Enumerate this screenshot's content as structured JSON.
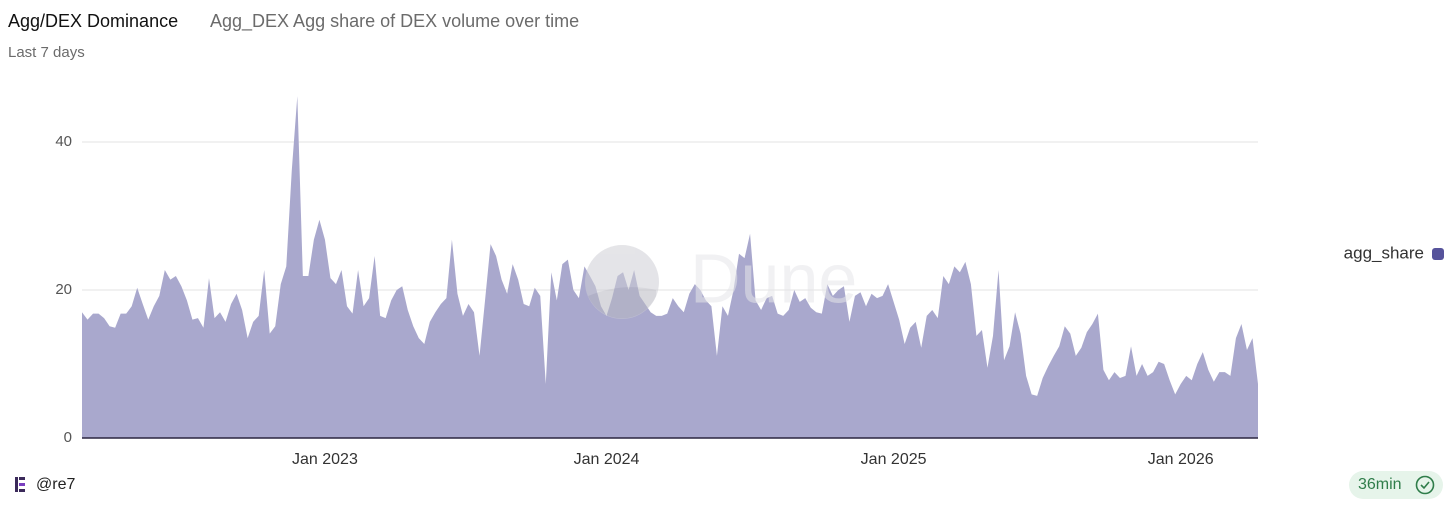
{
  "chart_data": {
    "type": "area",
    "title": "Agg/DEX Dominance",
    "subtitle": "Agg_DEX Agg share of DEX volume over time",
    "period": "Last 7 days",
    "watermark": "Dune",
    "author": "@re7",
    "refresh": "36min",
    "categories": [
      null,
      null,
      null,
      null,
      null,
      null,
      null,
      null,
      null,
      null,
      null,
      null,
      null,
      null,
      null,
      null,
      null,
      null,
      null,
      null,
      null,
      null,
      null,
      null,
      null,
      null,
      null,
      null,
      null,
      null,
      null,
      null,
      null,
      null,
      null,
      null,
      null,
      null,
      null,
      null,
      null,
      null,
      null,
      null,
      "Jan 2023",
      null,
      null,
      null,
      null,
      null,
      null,
      null,
      null,
      null,
      null,
      null,
      null,
      null,
      null,
      null,
      null,
      null,
      null,
      null,
      null,
      null,
      null,
      null,
      null,
      null,
      null,
      null,
      null,
      null,
      null,
      null,
      null,
      null,
      null,
      null,
      null,
      null,
      null,
      null,
      null,
      null,
      null,
      null,
      null,
      null,
      null,
      null,
      null,
      null,
      null,
      "Jan 2024",
      null,
      null,
      null,
      null,
      null,
      null,
      null,
      null,
      null,
      null,
      null,
      null,
      null,
      null,
      null,
      null,
      null,
      null,
      null,
      null,
      null,
      null,
      null,
      null,
      null,
      null,
      null,
      null,
      null,
      null,
      null,
      null,
      null,
      null,
      null,
      null,
      null,
      null,
      null,
      null,
      null,
      null,
      null,
      null,
      null,
      null,
      null,
      null,
      null,
      null,
      null,
      "Jan 2025",
      null,
      null,
      null,
      null,
      null,
      null,
      null,
      null,
      null,
      null,
      null,
      null,
      null,
      null,
      null,
      null,
      null,
      null,
      null,
      null,
      null,
      null,
      null,
      null,
      null,
      null,
      null,
      null,
      null,
      null,
      null,
      null,
      null,
      null,
      null,
      null,
      null,
      null,
      null,
      null,
      null,
      null,
      null,
      null,
      null,
      null,
      null,
      null,
      null,
      null,
      null,
      "Jan 2026",
      null,
      null,
      null,
      null,
      null,
      null,
      null,
      null,
      null,
      null,
      null,
      null,
      null,
      null
    ],
    "series": [
      {
        "name": "agg_share",
        "color": "#a9a8cd",
        "legend_color": "#56539b",
        "values": [
          17,
          16,
          16.8,
          16.8,
          16.2,
          15.1,
          14.9,
          16.8,
          16.8,
          17.8,
          20.3,
          18.1,
          16,
          17.8,
          19.2,
          22.7,
          21.4,
          21.9,
          20.5,
          18.6,
          16,
          16.2,
          14.9,
          21.6,
          16.2,
          17,
          15.7,
          18.1,
          19.5,
          17.3,
          13.5,
          15.7,
          16.5,
          22.7,
          14.1,
          15.1,
          20.8,
          23.2,
          36.2,
          46.2,
          21.9,
          21.9,
          26.8,
          29.5,
          26.8,
          21.6,
          20.8,
          22.7,
          17.8,
          16.8,
          22.7,
          17.8,
          18.9,
          24.6,
          16.5,
          16.2,
          18.6,
          20,
          20.5,
          17.3,
          15.1,
          13.5,
          12.7,
          15.7,
          17,
          18.1,
          18.9,
          26.8,
          19.5,
          16.5,
          18.1,
          17,
          11.1,
          18.6,
          26.2,
          24.6,
          21.4,
          19.5,
          23.5,
          21.4,
          18.1,
          17.8,
          20.3,
          19.2,
          7.3,
          22.4,
          18.6,
          23.5,
          24.1,
          20,
          18.9,
          23.2,
          21.9,
          20.5,
          17.8,
          16.5,
          18.9,
          21.9,
          22.4,
          20,
          22.7,
          19.2,
          18.1,
          17,
          16.5,
          16.5,
          16.8,
          18.9,
          17.8,
          17,
          19.5,
          20.8,
          20,
          18.6,
          17.8,
          11.1,
          17.8,
          16.5,
          20,
          24.9,
          24.3,
          27.6,
          18.6,
          17.3,
          18.9,
          19.2,
          16.8,
          16.5,
          17.3,
          20,
          18.4,
          18.9,
          17.6,
          17,
          16.8,
          20.8,
          19.2,
          20,
          20.5,
          15.7,
          19.2,
          19.7,
          17.8,
          19.5,
          18.9,
          19.2,
          20.8,
          18.4,
          16,
          12.7,
          14.9,
          15.7,
          12.2,
          16.5,
          17.3,
          16.2,
          21.9,
          20.8,
          23.2,
          22.4,
          23.8,
          20.8,
          13.8,
          14.6,
          9.5,
          13.8,
          22.7,
          10.5,
          12.4,
          17,
          14.1,
          8.4,
          5.9,
          5.7,
          8.1,
          9.7,
          11.1,
          12.4,
          15.1,
          14.1,
          11.1,
          12.2,
          14.3,
          15.4,
          16.8,
          9.2,
          7.8,
          8.9,
          8.1,
          8.4,
          12.4,
          8.4,
          10,
          8.4,
          8.9,
          10.3,
          10,
          7.8,
          5.9,
          7.3,
          8.4,
          7.8,
          10,
          11.6,
          9.2,
          7.6,
          8.9,
          8.9,
          8.4,
          13.5,
          15.4,
          11.9,
          13.5,
          7.3
        ]
      }
    ],
    "ylim": [
      0,
      50
    ],
    "yticks": [
      0,
      20,
      40
    ],
    "grid": true,
    "legend": "right"
  }
}
